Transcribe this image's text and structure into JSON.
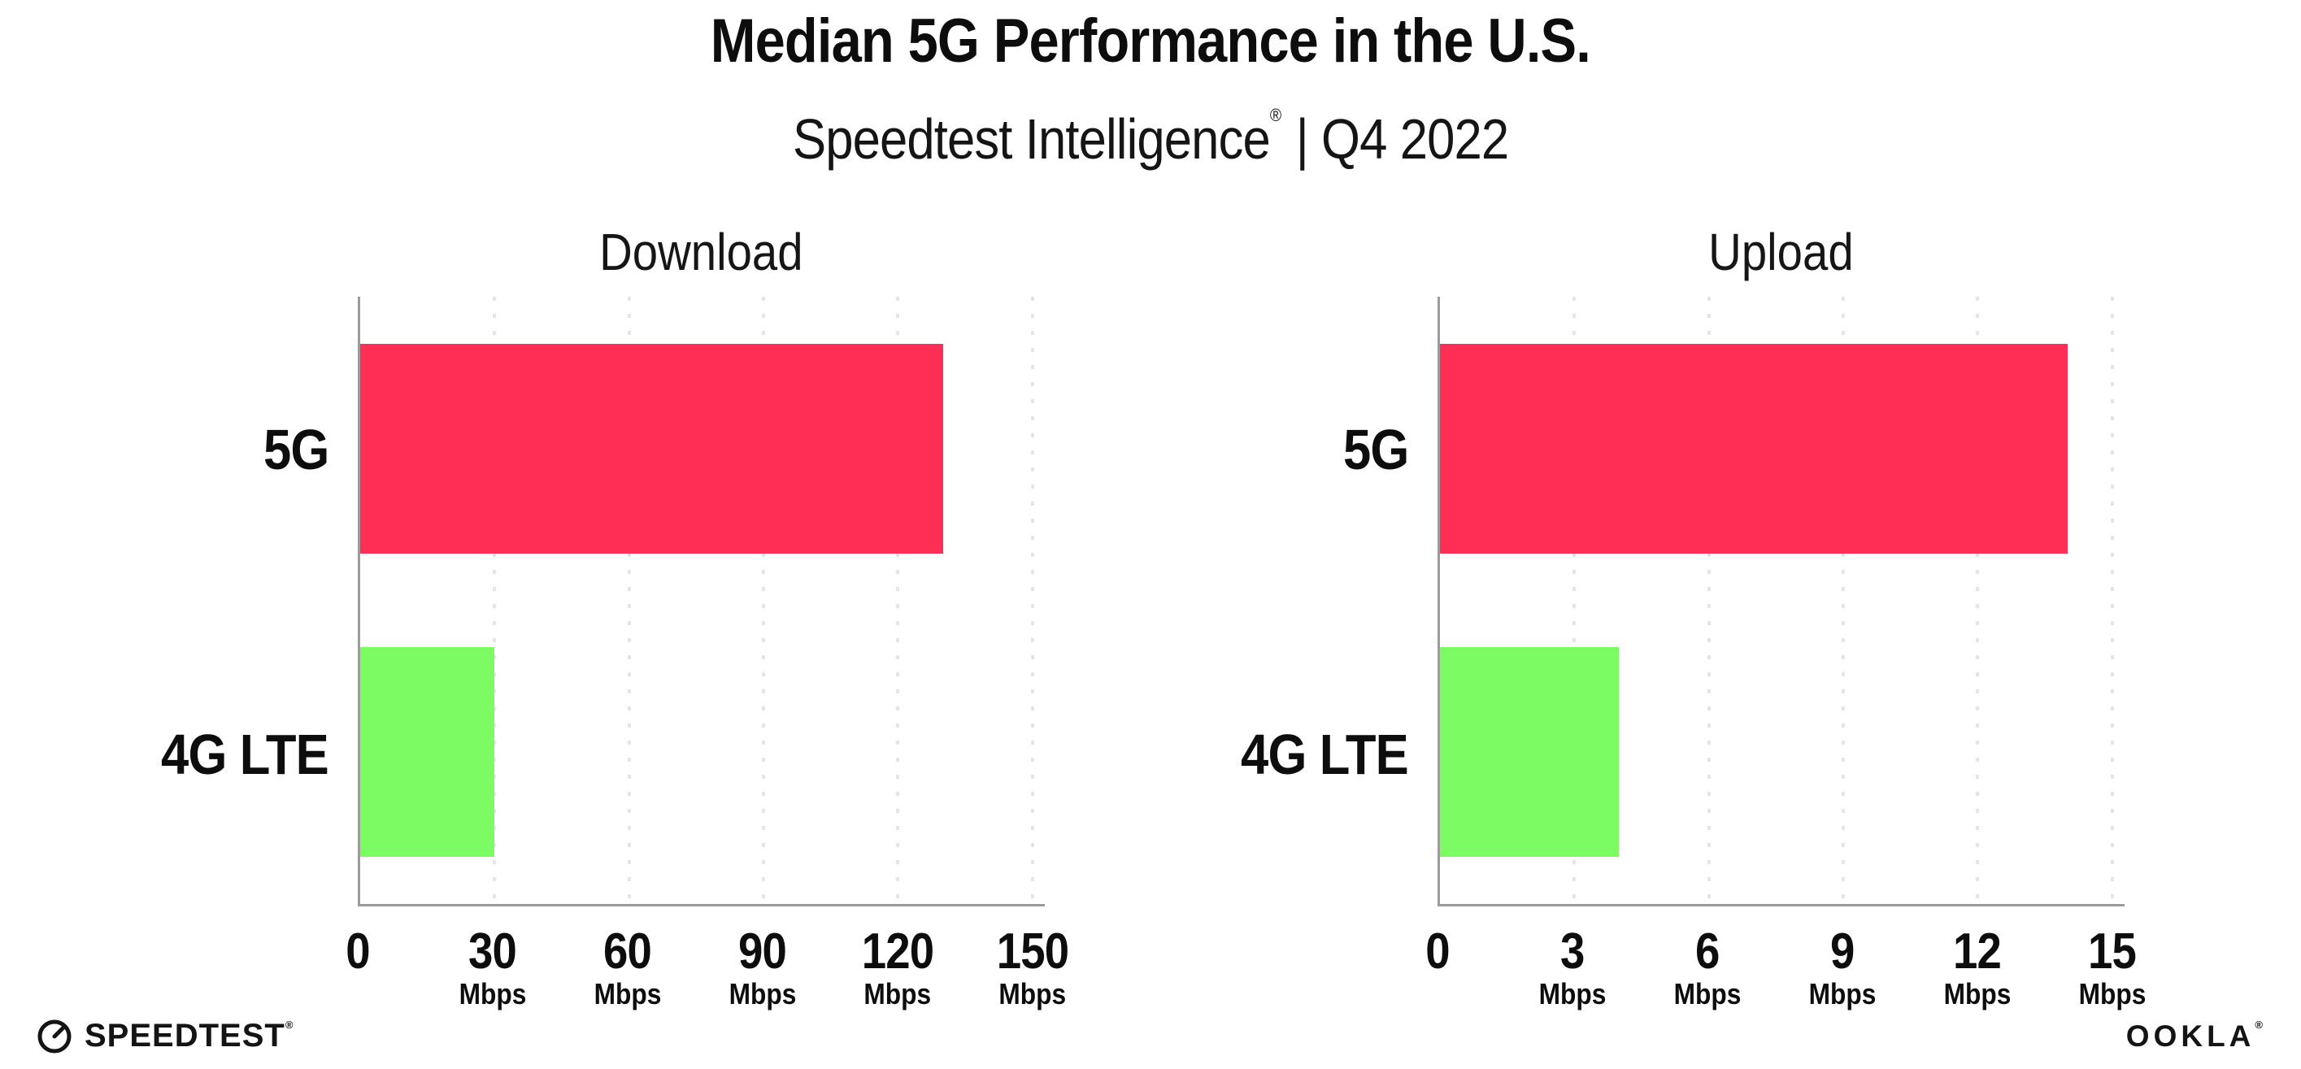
{
  "header": {
    "title": "Median 5G Performance in the U.S.",
    "subtitle_brand": "Speedtest Intelligence",
    "subtitle_reg": "®",
    "subtitle_rest": "| Q4 2022"
  },
  "footer": {
    "speedtest_label": "SPEEDTEST",
    "speedtest_mark": "®",
    "ookla_label": "OOKLA",
    "ookla_mark": "®"
  },
  "colors": {
    "bar_5g": "#FF2E55",
    "bar_4g_lte": "#7DFB62",
    "gridline": "#E4E4EE",
    "axis": "#9B9B9E",
    "text": "#0D0D0D"
  },
  "chart_data": [
    {
      "type": "bar",
      "orientation": "horizontal",
      "title": "Download",
      "categories": [
        "5G",
        "4G LTE"
      ],
      "values": [
        130,
        30
      ],
      "unit": "Mbps",
      "xlabel": "",
      "ylabel": "",
      "xlim": [
        0,
        150
      ],
      "xticks": [
        0,
        30,
        60,
        90,
        120,
        150
      ],
      "bar_colors": [
        "#FF2E55",
        "#7DFB62"
      ],
      "grid": "dotted vertical gridlines at each tick",
      "legend": "none"
    },
    {
      "type": "bar",
      "orientation": "horizontal",
      "title": "Upload",
      "categories": [
        "5G",
        "4G LTE"
      ],
      "values": [
        14,
        4
      ],
      "unit": "Mbps",
      "xlabel": "",
      "ylabel": "",
      "xlim": [
        0,
        15
      ],
      "xticks": [
        0,
        3,
        6,
        9,
        12,
        15
      ],
      "bar_colors": [
        "#FF2E55",
        "#7DFB62"
      ],
      "grid": "dotted vertical gridlines at each tick",
      "legend": "none"
    }
  ]
}
